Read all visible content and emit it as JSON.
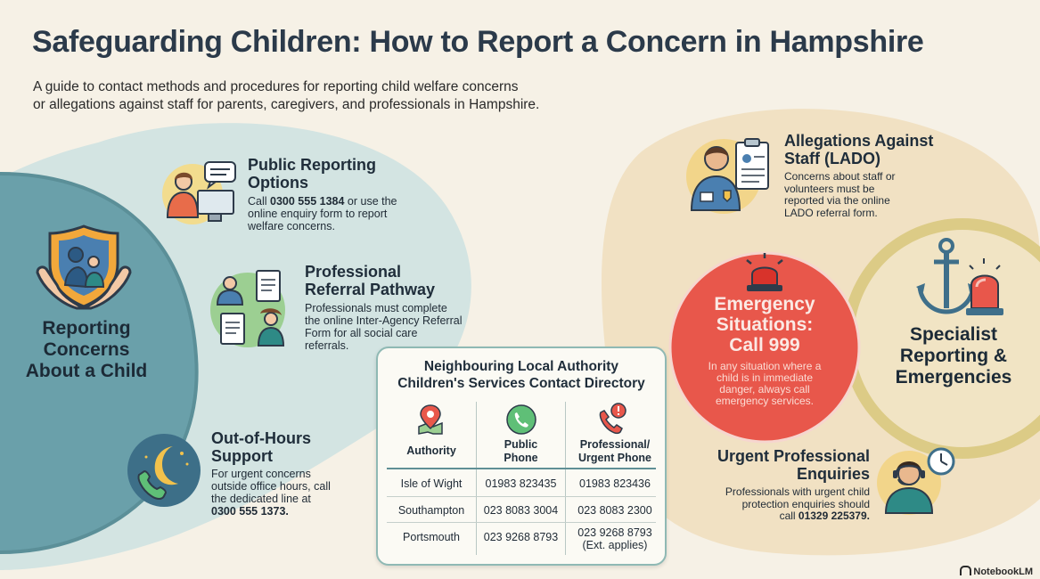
{
  "header": {
    "title": "Safeguarding Children: How to Report a Concern in Hampshire",
    "subtitle_line1": "A guide to contact methods and procedures for reporting child welfare concerns",
    "subtitle_line2": "or allegations against staff for parents, caregivers, and professionals in Hampshire."
  },
  "left_section": {
    "title_line1": "Reporting",
    "title_line2": "Concerns",
    "title_line3": "About a Child",
    "icon": "family-shield-hands-icon"
  },
  "public_reporting": {
    "title_line1": "Public Reporting",
    "title_line2": "Options",
    "text_pre": "Call ",
    "phone": "0300 555 1384",
    "text_post1": " or use the",
    "text_line2": "online enquiry form to report",
    "text_line3": "welfare concerns.",
    "icon": "person-phone-computer-icon"
  },
  "professional_referral": {
    "title_line1": "Professional",
    "title_line2": "Referral Pathway",
    "text_line1": "Professionals must complete",
    "text_line2": "the online Inter-Agency Referral",
    "text_line3": "Form for all social care",
    "text_line4": "referrals.",
    "icon": "professionals-documents-icon"
  },
  "out_of_hours": {
    "title_line1": "Out-of-Hours",
    "title_line2": "Support",
    "text_line1": "For urgent concerns",
    "text_line2": "outside office hours, call",
    "text_line3": "the dedicated line at",
    "phone": "0300 555 1373.",
    "icon": "moon-phone-icon"
  },
  "directory": {
    "title_line1": "Neighbouring Local Authority",
    "title_line2": "Children's Services Contact Directory",
    "headers": [
      "Authority",
      "Public Phone",
      "Professional/ Urgent Phone"
    ],
    "header_public_line1": "Public",
    "header_public_line2": "Phone",
    "header_prof_line1": "Professional/",
    "header_prof_line2": "Urgent Phone",
    "rows": [
      {
        "authority": "Isle of Wight",
        "public": "01983 823435",
        "professional": "01983 823436",
        "note": ""
      },
      {
        "authority": "Southampton",
        "public": "023 8083 3004",
        "professional": "023 8083 2300",
        "note": ""
      },
      {
        "authority": "Portsmouth",
        "public": "023 9268 8793",
        "professional": "023 9268 8793",
        "note": "(Ext. applies)"
      }
    ],
    "icons": [
      "map-pin-icon",
      "phone-icon",
      "alert-phone-icon"
    ]
  },
  "lado": {
    "title_line1": "Allegations Against",
    "title_line2": "Staff (LADO)",
    "text_line1": "Concerns about staff or",
    "text_line2": "volunteers must be",
    "text_line3": "reported via the online",
    "text_line4": "LADO referral form.",
    "icon": "staff-badge-clipboard-icon"
  },
  "emergency": {
    "title_line1": "Emergency",
    "title_line2": "Situations:",
    "title_line3": "Call 999",
    "text_line1": "In any situation where a",
    "text_line2": "child is in immediate",
    "text_line3": "danger, always call",
    "text_line4": "emergency services.",
    "icon": "siren-icon"
  },
  "right_section": {
    "title_line1": "Specialist",
    "title_line2": "Reporting &",
    "title_line3": "Emergencies",
    "icon": "anchor-siren-icon"
  },
  "urgent_professional": {
    "title_line1": "Urgent Professional",
    "title_line2": "Enquiries",
    "text_line1": "Professionals with urgent child",
    "text_line2": "protection enquiries should",
    "text_pre": "call ",
    "phone": "01329 225379.",
    "icon": "headset-clock-icon"
  },
  "footer": {
    "brand": "NotebookLM"
  },
  "colors": {
    "background": "#f6f1e6",
    "teal": "#5f9aa5",
    "light_teal": "#cfe2e0",
    "emergency_red": "#e8574b",
    "olive": "#d4c27a",
    "beige": "#f3e3c8"
  }
}
